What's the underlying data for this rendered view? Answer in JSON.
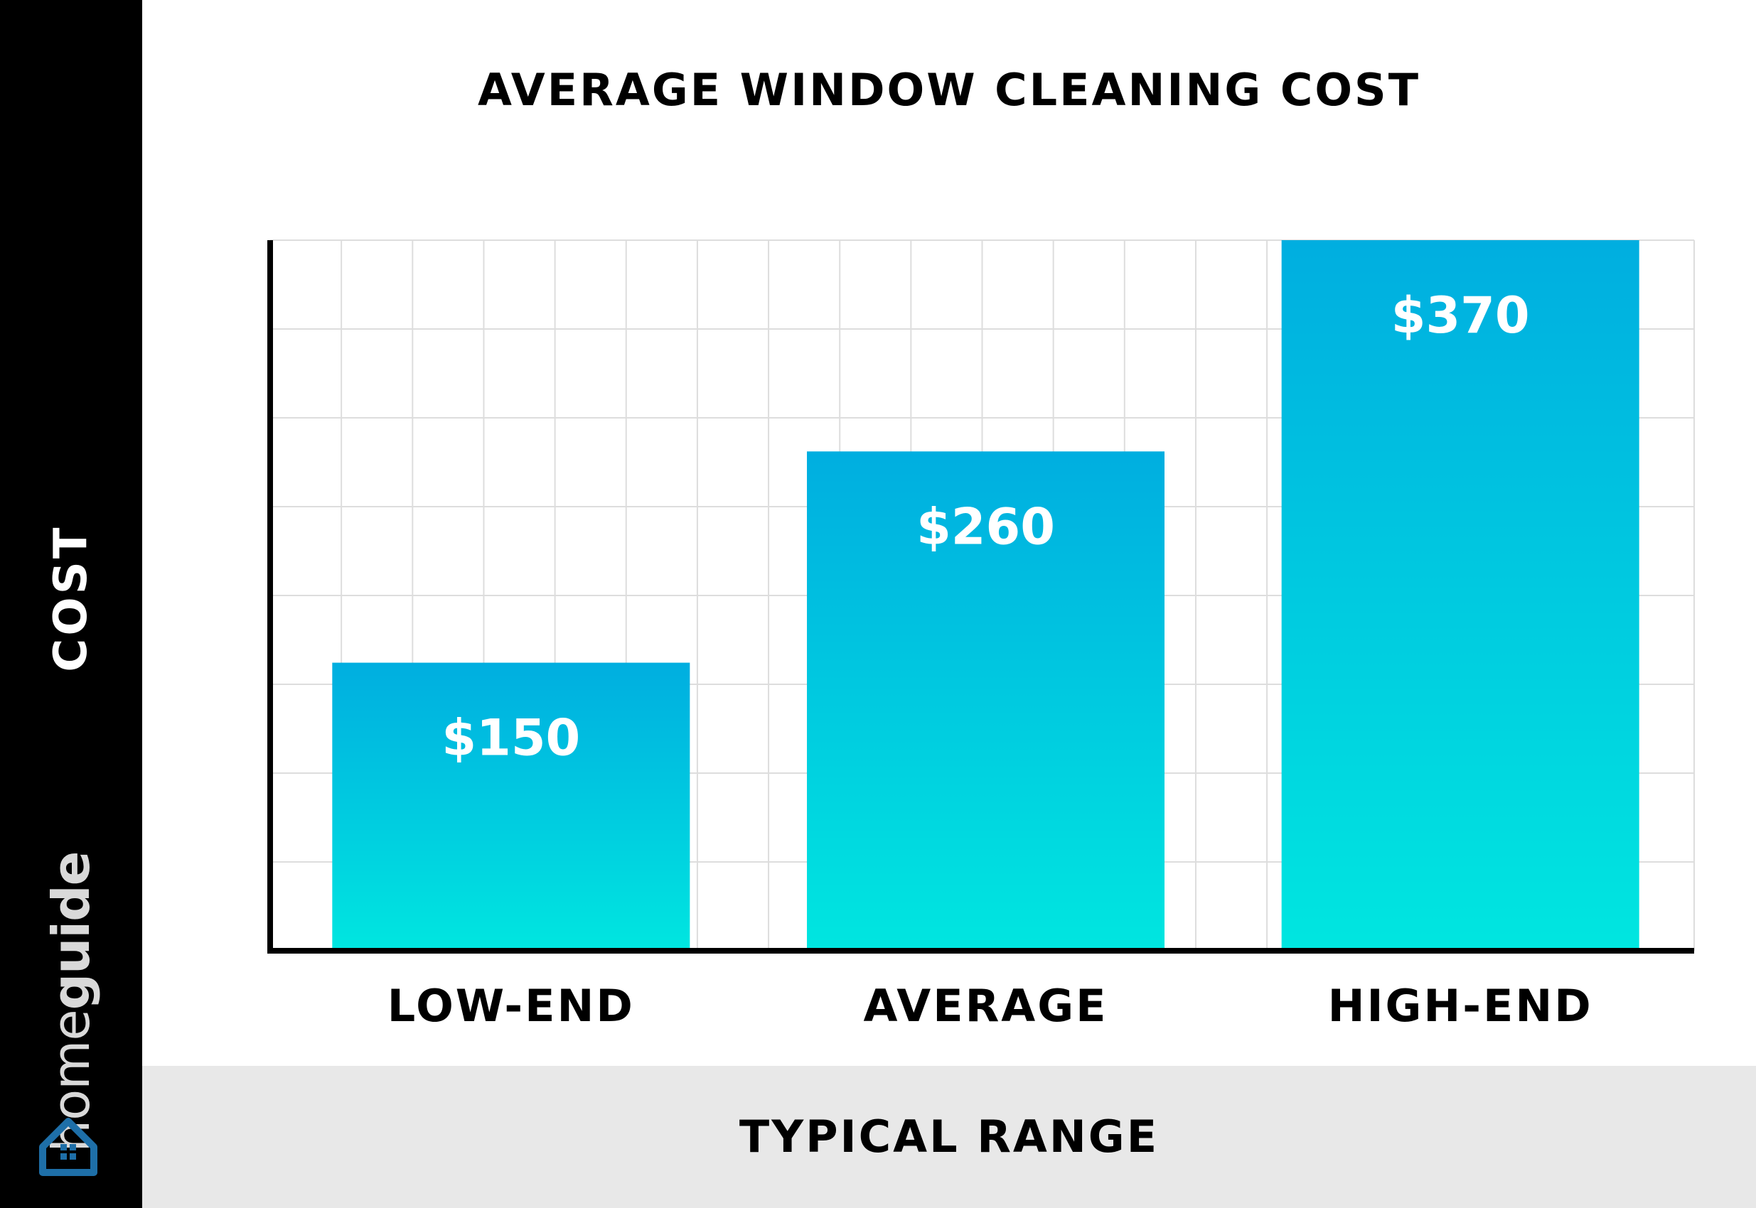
{
  "chart_data": {
    "type": "bar",
    "title": "AVERAGE WINDOW CLEANING COST",
    "xlabel": "TYPICAL RANGE",
    "ylabel": "COST",
    "categories": [
      "LOW-END",
      "AVERAGE",
      "HIGH-END"
    ],
    "values": [
      150,
      260,
      370
    ],
    "value_labels": [
      "$150",
      "$260",
      "$370"
    ],
    "ylim": [
      0,
      370
    ],
    "grid": true,
    "legend": "none"
  },
  "brand": {
    "light": "home",
    "bold": "guide"
  },
  "colors": {
    "bar_top": "#00aee0",
    "bar_bottom": "#00e6e0",
    "grid": "#dddddd",
    "axis": "#000000",
    "sidebar": "#000000",
    "footer": "#e8e8e8",
    "logo": "#1e6fa8"
  },
  "icons": {
    "logo": "house-icon"
  }
}
